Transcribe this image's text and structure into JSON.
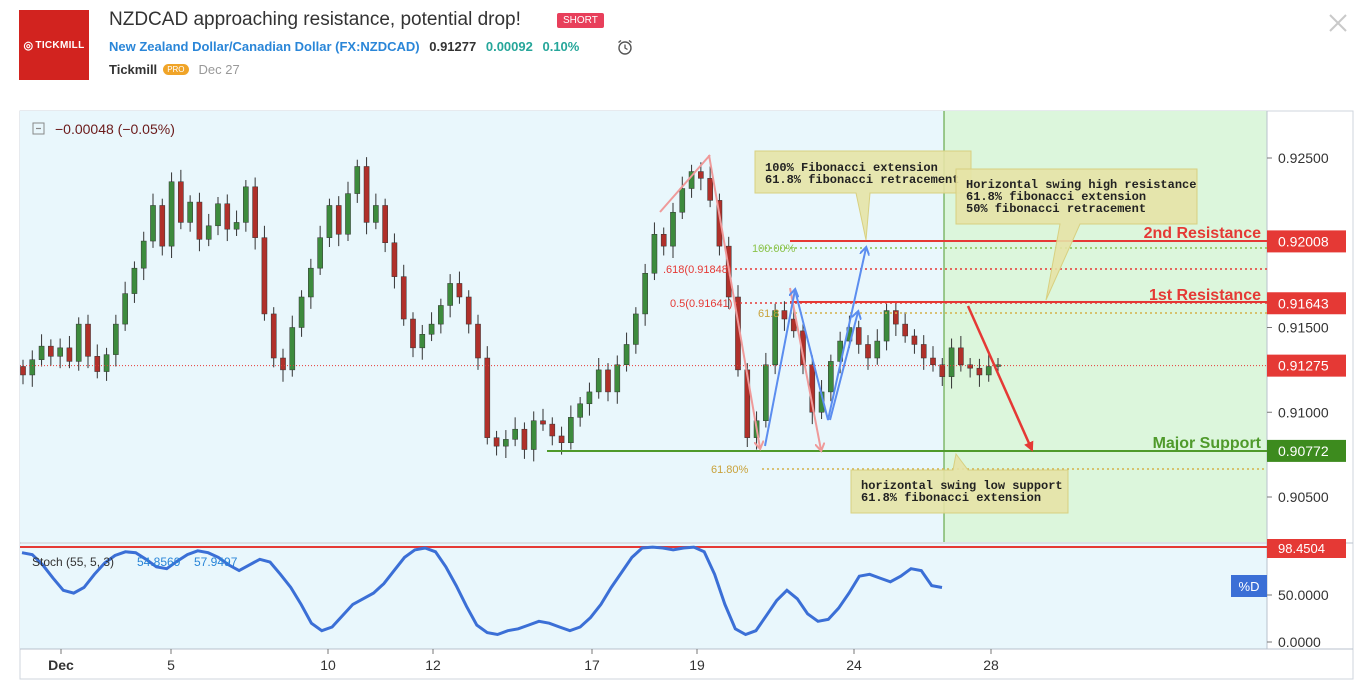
{
  "header": {
    "logo_text": "TICKMILL",
    "title": "NZDCAD approaching resistance, potential drop!",
    "badge": "SHORT",
    "pair_name": "New Zealand Dollar/Canadian Dollar",
    "symbol": "(FX:NZDCAD)",
    "price": "0.91277",
    "change": "0.00092",
    "change_pct": "0.10%",
    "author": "Tickmill",
    "author_badge": "PRO",
    "date": "Dec 27"
  },
  "chart_data": {
    "type": "candlestick",
    "change_readout": "−0.00048 (−0.05%)",
    "y_axis_ticks": [
      "0.92500",
      "0.91500",
      "0.91000",
      "0.90500"
    ],
    "price_labels": [
      {
        "text": "0.92008",
        "value": 0.92008,
        "color": "#e53935"
      },
      {
        "text": "0.91643",
        "value": 0.91643,
        "color": "#e53935"
      },
      {
        "text": "0.91275",
        "value": 0.91275,
        "color": "#e53935"
      },
      {
        "text": "0.90772",
        "value": 0.90772,
        "color": "#3d8b1e"
      }
    ],
    "x_axis_ticks": [
      "Dec",
      "5",
      "10",
      "12",
      "17",
      "19",
      "24",
      "28"
    ],
    "levels": [
      {
        "name": "2nd Resistance",
        "value": 0.92008,
        "color": "#e53935"
      },
      {
        "name": "1st Resistance",
        "value": 0.91643,
        "color": "#e53935"
      },
      {
        "name": "Major Support",
        "value": 0.90772,
        "color": "#4f9a2b"
      }
    ],
    "fib_labels": {
      "ext_100": "100.00%",
      "ext_618": ".618(0.91848)",
      "ret_50": "0.5(0.91641)",
      "ret_618_partial": "61.8",
      "ext_618_low": "61.80%"
    },
    "annotations": [
      {
        "line1": "100% Fibonacci extension",
        "line2": "61.8% fibonacci retracement"
      },
      {
        "line1": "Horizontal swing high resistance",
        "line2": "61.8% fibonacci extension",
        "line3": "50% fibonacci retracement"
      },
      {
        "line1": "horizontal swing low support",
        "line2": "61.8% fibonacci extension"
      }
    ],
    "candles": [
      [
        0.9127,
        0.9122
      ],
      [
        0.9122,
        0.9131
      ],
      [
        0.9131,
        0.9139
      ],
      [
        0.9139,
        0.9133
      ],
      [
        0.9133,
        0.9138
      ],
      [
        0.9138,
        0.913
      ],
      [
        0.913,
        0.9152
      ],
      [
        0.9152,
        0.9133
      ],
      [
        0.9133,
        0.9124
      ],
      [
        0.9124,
        0.9134
      ],
      [
        0.9134,
        0.9152
      ],
      [
        0.9152,
        0.917
      ],
      [
        0.917,
        0.9185
      ],
      [
        0.9185,
        0.9201
      ],
      [
        0.9201,
        0.9222
      ],
      [
        0.9222,
        0.9198
      ],
      [
        0.9198,
        0.9236
      ],
      [
        0.9236,
        0.9212
      ],
      [
        0.9212,
        0.9224
      ],
      [
        0.9224,
        0.9202
      ],
      [
        0.9202,
        0.921
      ],
      [
        0.921,
        0.9223
      ],
      [
        0.9223,
        0.9208
      ],
      [
        0.9208,
        0.9212
      ],
      [
        0.9212,
        0.9233
      ],
      [
        0.9233,
        0.9203
      ],
      [
        0.9203,
        0.9158
      ],
      [
        0.9158,
        0.9132
      ],
      [
        0.9132,
        0.9125
      ],
      [
        0.9125,
        0.915
      ],
      [
        0.915,
        0.9168
      ],
      [
        0.9168,
        0.9185
      ],
      [
        0.9185,
        0.9203
      ],
      [
        0.9203,
        0.9222
      ],
      [
        0.9222,
        0.9205
      ],
      [
        0.9205,
        0.9229
      ],
      [
        0.9229,
        0.9245
      ],
      [
        0.9245,
        0.9212
      ],
      [
        0.9212,
        0.9222
      ],
      [
        0.9222,
        0.92
      ],
      [
        0.92,
        0.918
      ],
      [
        0.918,
        0.9155
      ],
      [
        0.9155,
        0.9138
      ],
      [
        0.9138,
        0.9146
      ],
      [
        0.9146,
        0.9152
      ],
      [
        0.9152,
        0.9163
      ],
      [
        0.9163,
        0.9176
      ],
      [
        0.9176,
        0.9168
      ],
      [
        0.9168,
        0.9152
      ],
      [
        0.9152,
        0.9132
      ],
      [
        0.9132,
        0.9085
      ],
      [
        0.9085,
        0.908
      ],
      [
        0.908,
        0.9084
      ],
      [
        0.9084,
        0.909
      ],
      [
        0.909,
        0.9078
      ],
      [
        0.9078,
        0.9095
      ],
      [
        0.9095,
        0.9093
      ],
      [
        0.9093,
        0.9086
      ],
      [
        0.9086,
        0.9082
      ],
      [
        0.9082,
        0.9097
      ],
      [
        0.9097,
        0.9105
      ],
      [
        0.9105,
        0.9112
      ],
      [
        0.9112,
        0.9125
      ],
      [
        0.9125,
        0.9112
      ],
      [
        0.9112,
        0.9128
      ],
      [
        0.9128,
        0.914
      ],
      [
        0.914,
        0.9158
      ],
      [
        0.9158,
        0.9182
      ],
      [
        0.9182,
        0.9205
      ],
      [
        0.9205,
        0.9198
      ],
      [
        0.9198,
        0.9218
      ],
      [
        0.9218,
        0.9232
      ],
      [
        0.9232,
        0.9242
      ],
      [
        0.9242,
        0.9238
      ],
      [
        0.9238,
        0.9225
      ],
      [
        0.9225,
        0.9198
      ],
      [
        0.9198,
        0.9168
      ],
      [
        0.9168,
        0.9125
      ],
      [
        0.9125,
        0.9085
      ],
      [
        0.9085,
        0.9095
      ],
      [
        0.9095,
        0.9128
      ],
      [
        0.9128,
        0.916
      ],
      [
        0.916,
        0.9155
      ],
      [
        0.9155,
        0.9148
      ],
      [
        0.9148,
        0.9128
      ],
      [
        0.9128,
        0.91
      ],
      [
        0.91,
        0.9112
      ],
      [
        0.9112,
        0.913
      ],
      [
        0.913,
        0.9142
      ],
      [
        0.9142,
        0.915
      ],
      [
        0.915,
        0.914
      ],
      [
        0.914,
        0.9132
      ],
      [
        0.9132,
        0.9142
      ],
      [
        0.9142,
        0.916
      ],
      [
        0.916,
        0.9152
      ],
      [
        0.9152,
        0.9145
      ],
      [
        0.9145,
        0.914
      ],
      [
        0.914,
        0.9132
      ],
      [
        0.9132,
        0.9128
      ],
      [
        0.9128,
        0.9121
      ],
      [
        0.9121,
        0.9138
      ],
      [
        0.9138,
        0.9128
      ],
      [
        0.9128,
        0.9126
      ],
      [
        0.9126,
        0.9122
      ],
      [
        0.9122,
        0.9127
      ],
      [
        0.9127,
        0.9128
      ]
    ],
    "stochastic": {
      "label": "Stoch (55, 5, 3)",
      "k_value": "57.9497",
      "d_value": "54.8569",
      "overbought_label": "98.4504",
      "d_marker": "%D",
      "y_ticks": [
        "50.0000",
        "0.0000"
      ],
      "values": [
        95,
        93,
        82,
        68,
        55,
        52,
        58,
        72,
        84,
        92,
        96,
        95,
        88,
        80,
        78,
        86,
        93,
        97,
        95,
        90,
        82,
        76,
        82,
        88,
        85,
        72,
        58,
        40,
        20,
        12,
        16,
        28,
        40,
        46,
        52,
        62,
        76,
        90,
        98,
        100,
        96,
        80,
        60,
        38,
        18,
        10,
        8,
        12,
        14,
        18,
        22,
        20,
        16,
        12,
        16,
        26,
        40,
        58,
        74,
        90,
        100,
        101,
        100,
        98,
        100,
        101,
        96,
        72,
        40,
        14,
        8,
        12,
        28,
        44,
        55,
        46,
        30,
        22,
        24,
        36,
        52,
        70,
        72,
        68,
        64,
        70,
        78,
        76,
        60,
        58
      ]
    }
  }
}
